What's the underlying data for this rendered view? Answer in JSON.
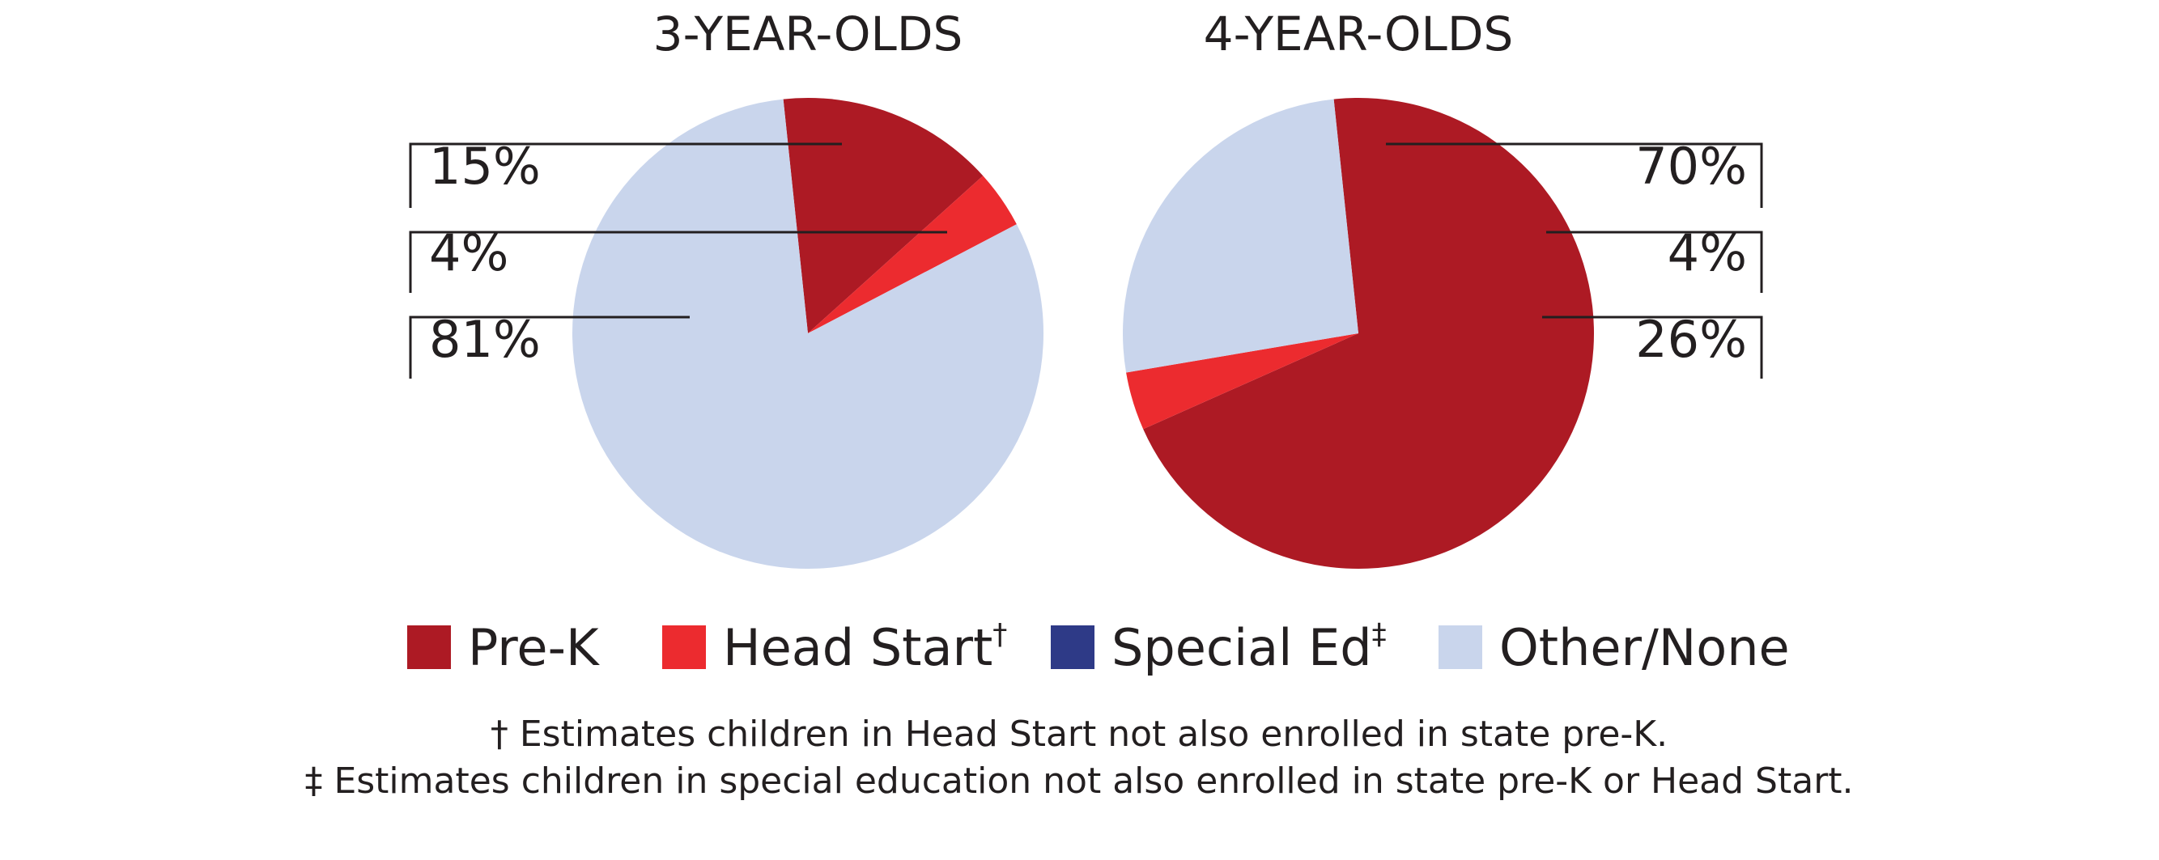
{
  "chart_data": [
    {
      "type": "pie",
      "title": "3-YEAR-OLDS",
      "slices": [
        {
          "category": "Pre-K",
          "value": 15,
          "label": "15%",
          "color": "#ad1a24"
        },
        {
          "category": "Head Start",
          "value": 4,
          "label": "4%",
          "color": "#ec2b2f"
        },
        {
          "category": "Special Ed",
          "value": 0,
          "label": "",
          "color": "#2e3a87"
        },
        {
          "category": "Other/None",
          "value": 81,
          "label": "81%",
          "color": "#c9d5ec"
        }
      ],
      "label_side": "left"
    },
    {
      "type": "pie",
      "title": "4-YEAR-OLDS",
      "slices": [
        {
          "category": "Pre-K",
          "value": 70,
          "label": "70%",
          "color": "#ad1a24"
        },
        {
          "category": "Head Start",
          "value": 4,
          "label": "4%",
          "color": "#ec2b2f"
        },
        {
          "category": "Special Ed",
          "value": 0,
          "label": "",
          "color": "#2e3a87"
        },
        {
          "category": "Other/None",
          "value": 26,
          "label": "26%",
          "color": "#c9d5ec"
        }
      ],
      "label_side": "right"
    }
  ],
  "legend": {
    "placement": "bottom",
    "items": [
      {
        "name": "Pre-K",
        "sup": "",
        "color": "#ad1a24"
      },
      {
        "name": "Head Start",
        "sup": "†",
        "color": "#ec2b2f"
      },
      {
        "name": "Special Ed",
        "sup": "‡",
        "color": "#2e3a87"
      },
      {
        "name": "Other/None",
        "sup": "",
        "color": "#c9d5ec"
      }
    ]
  },
  "footnotes": [
    "† Estimates children in Head Start not also enrolled in state pre-K.",
    "‡ Estimates children in special education not also enrolled in state pre-K or Head Start."
  ]
}
